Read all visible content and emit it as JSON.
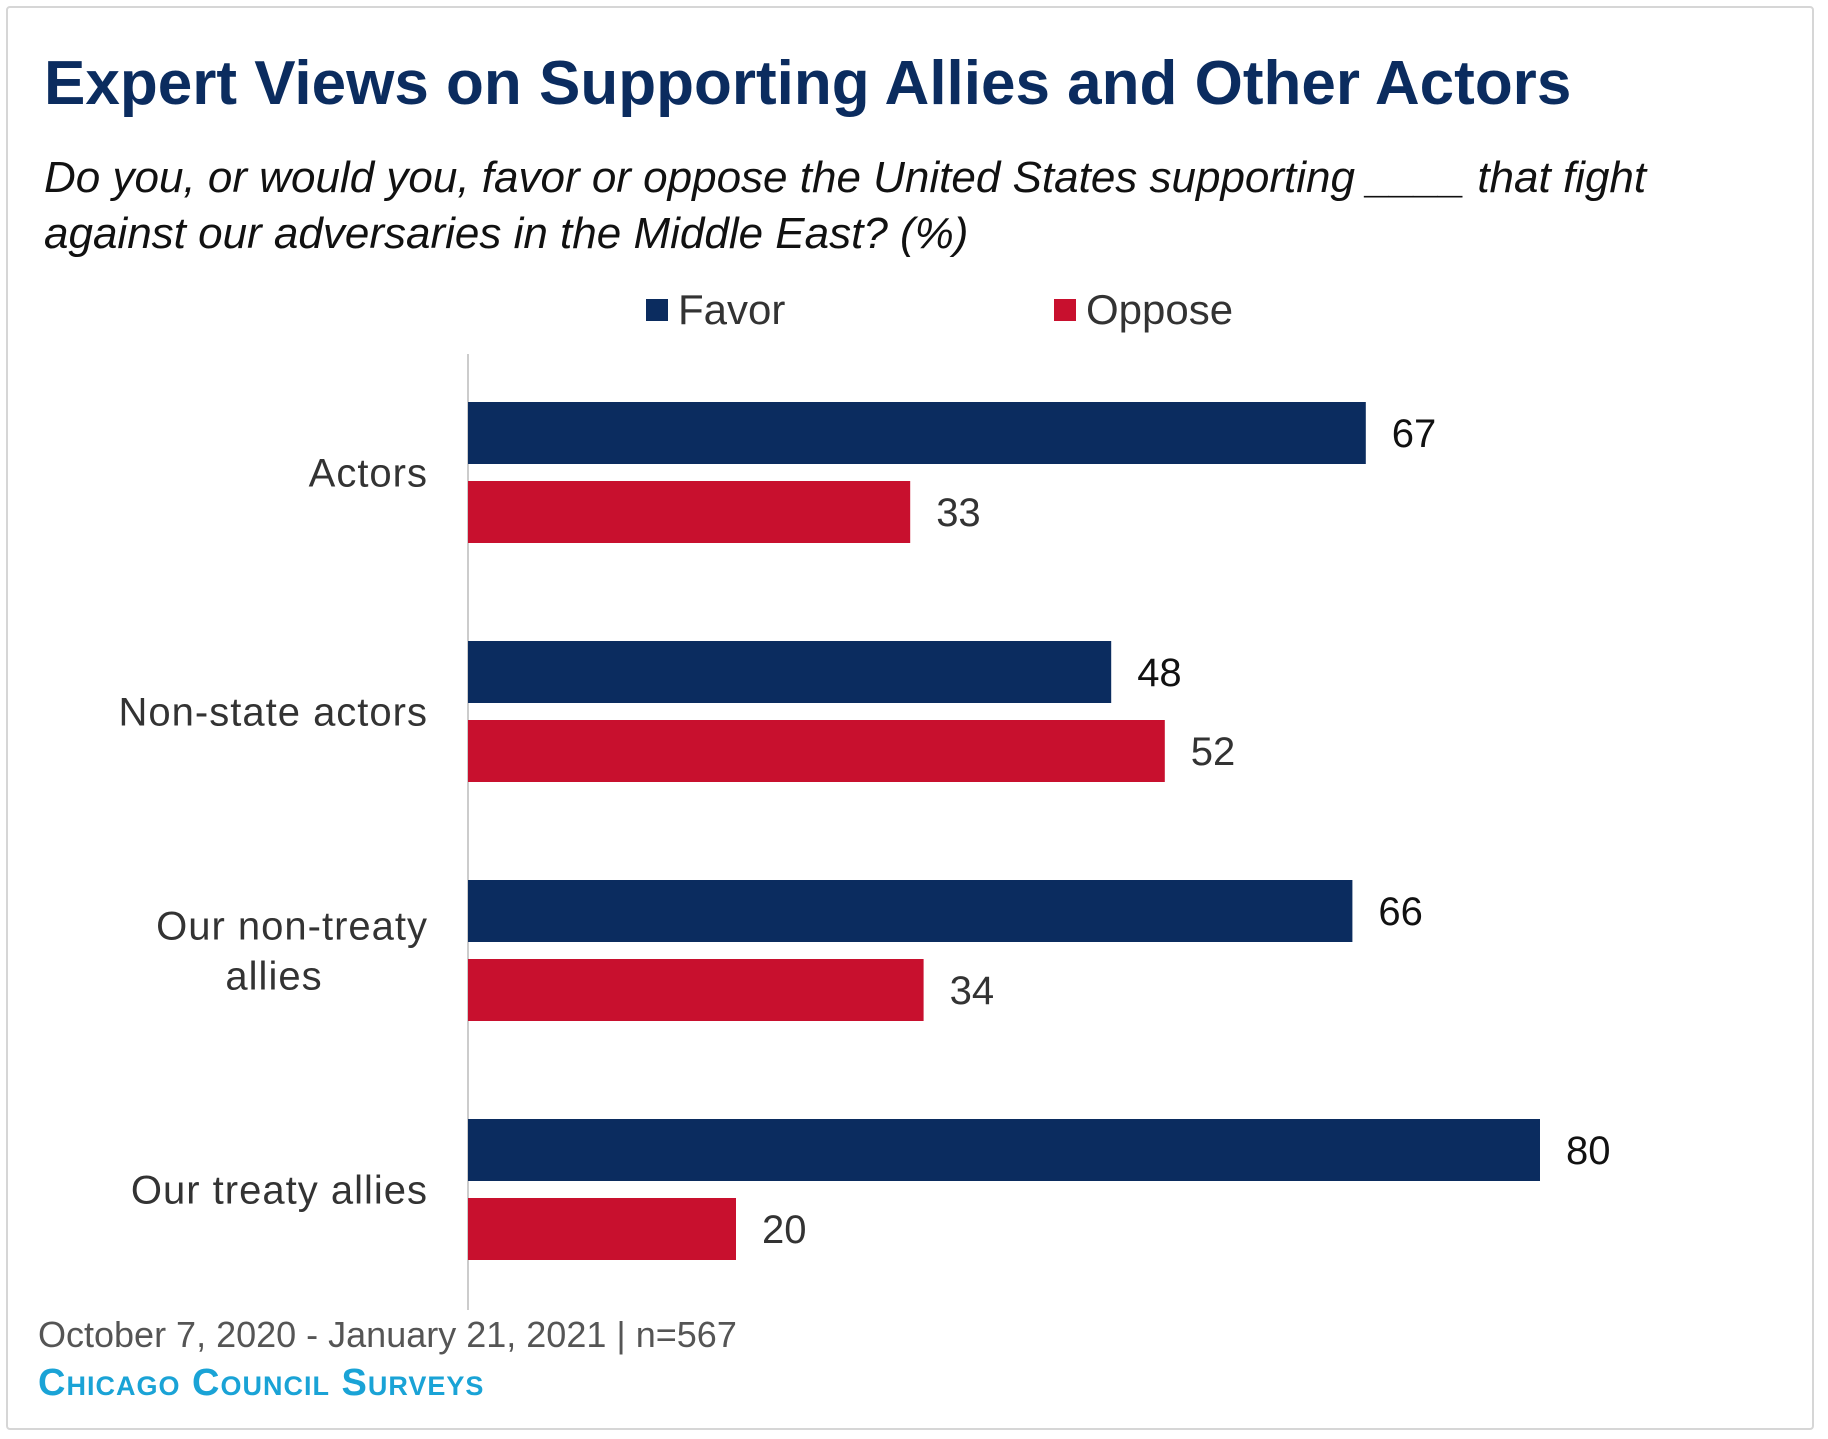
{
  "title": "Expert Views on Supporting Allies and Other Actors",
  "subtitle": "Do you, or would you, favor or oppose the United States supporting ____ that fight against our adversaries in the Middle East? (%)",
  "legend": {
    "favor": "Favor",
    "oppose": "Oppose"
  },
  "colors": {
    "favor": "#0b2c5f",
    "oppose": "#c8102e",
    "title": "#0b2c5f",
    "brand": "#1aa3d6"
  },
  "chart_data": {
    "type": "bar",
    "orientation": "horizontal",
    "categories": [
      [
        "Actors"
      ],
      [
        "Non-state actors"
      ],
      [
        "Our non-treaty",
        "allies"
      ],
      [
        "Our treaty allies"
      ]
    ],
    "series": [
      {
        "name": "Favor",
        "values": [
          67,
          48,
          66,
          80
        ]
      },
      {
        "name": "Oppose",
        "values": [
          33,
          52,
          34,
          20
        ]
      }
    ],
    "xlim": [
      0,
      100
    ],
    "grid": false,
    "legend_position": "top"
  },
  "footer": {
    "date_range": "October 7, 2020 - January 21, 2021 | n=567",
    "source": "Chicago Council Surveys"
  }
}
